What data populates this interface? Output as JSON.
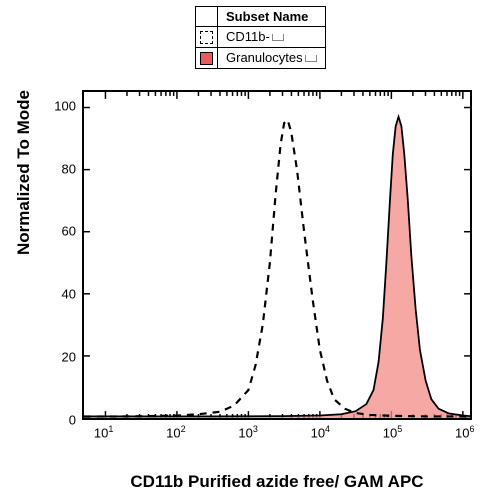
{
  "legend": {
    "header": "Subset Name",
    "items": [
      {
        "label": "CD11b-",
        "fill": "#ffffff",
        "stroke": "#000000",
        "dash": true
      },
      {
        "label": "Granulocytes",
        "fill": "#ef5a5a",
        "stroke": "#000000",
        "dash": false
      }
    ]
  },
  "axes": {
    "ylabel": "Normalized To Mode",
    "xlabel": "CD11b Purified azide free/ GAM APC",
    "ylim": [
      0,
      105
    ],
    "yticks": [
      0,
      20,
      40,
      60,
      80,
      100
    ],
    "xlog_min": 0.7,
    "xlog_max": 6.1,
    "xtick_exponents": [
      1,
      2,
      3,
      4,
      5,
      6
    ]
  },
  "style": {
    "background": "#ffffff",
    "frame_color": "#000000",
    "dash_line_width": 2.2,
    "solid_line_width": 1.8,
    "fill_opacity": 0.75
  },
  "series": [
    {
      "name": "CD11b-",
      "stroke": "#000000",
      "fill": "none",
      "dash": "7,6",
      "width": 2.2,
      "points": [
        [
          0.7,
          0.5
        ],
        [
          1.2,
          0.5
        ],
        [
          1.6,
          0.6
        ],
        [
          2.0,
          0.8
        ],
        [
          2.3,
          1.2
        ],
        [
          2.6,
          2.0
        ],
        [
          2.8,
          4.0
        ],
        [
          3.0,
          9.0
        ],
        [
          3.1,
          17
        ],
        [
          3.2,
          30
        ],
        [
          3.3,
          50
        ],
        [
          3.38,
          72
        ],
        [
          3.45,
          88
        ],
        [
          3.5,
          95
        ],
        [
          3.55,
          96
        ],
        [
          3.6,
          92
        ],
        [
          3.68,
          80
        ],
        [
          3.78,
          60
        ],
        [
          3.9,
          38
        ],
        [
          4.0,
          22
        ],
        [
          4.1,
          12
        ],
        [
          4.2,
          6
        ],
        [
          4.35,
          3
        ],
        [
          4.5,
          1.6
        ],
        [
          4.7,
          1.0
        ],
        [
          5.0,
          0.7
        ],
        [
          5.5,
          0.5
        ],
        [
          6.1,
          0.5
        ]
      ]
    },
    {
      "name": "Granulocytes",
      "stroke": "#000000",
      "fill": "#f28b86",
      "dash": "none",
      "width": 1.8,
      "points": [
        [
          0.7,
          0.5
        ],
        [
          2.5,
          0.5
        ],
        [
          3.5,
          0.6
        ],
        [
          4.0,
          0.8
        ],
        [
          4.3,
          1.2
        ],
        [
          4.5,
          2.2
        ],
        [
          4.65,
          4.5
        ],
        [
          4.75,
          9
        ],
        [
          4.82,
          18
        ],
        [
          4.88,
          32
        ],
        [
          4.93,
          50
        ],
        [
          4.98,
          70
        ],
        [
          5.02,
          85
        ],
        [
          5.06,
          94
        ],
        [
          5.1,
          97
        ],
        [
          5.14,
          94
        ],
        [
          5.18,
          85
        ],
        [
          5.23,
          70
        ],
        [
          5.28,
          52
        ],
        [
          5.34,
          35
        ],
        [
          5.4,
          22
        ],
        [
          5.48,
          12
        ],
        [
          5.56,
          6
        ],
        [
          5.66,
          3
        ],
        [
          5.8,
          1.5
        ],
        [
          6.0,
          0.8
        ],
        [
          6.1,
          0.6
        ]
      ]
    }
  ]
}
